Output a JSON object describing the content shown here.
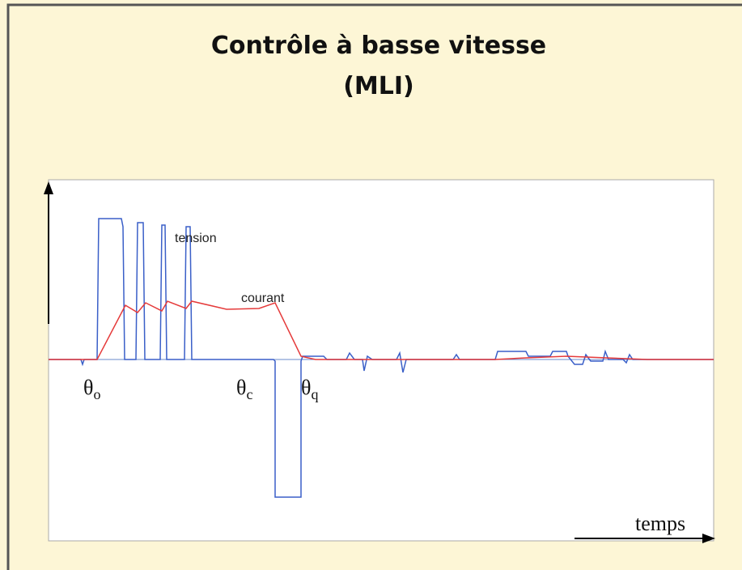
{
  "title": [
    "Contrôle à basse vitesse",
    "(MLI)"
  ],
  "curves": {
    "tension": "tension",
    "courant": "courant"
  },
  "x_axis_label": "temps",
  "markers": [
    {
      "symbol": "θ",
      "subscript": "o"
    },
    {
      "symbol": "θ",
      "subscript": "c"
    },
    {
      "symbol": "θ",
      "subscript": "q"
    }
  ]
}
